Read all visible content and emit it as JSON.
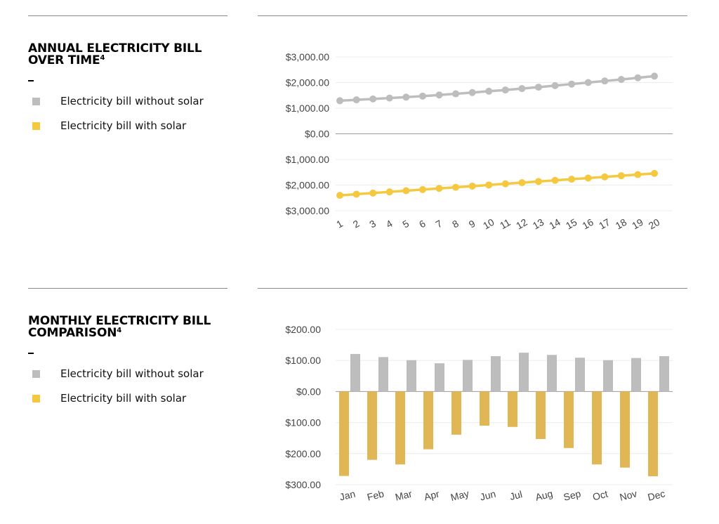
{
  "panels": [
    {
      "title": "ANNUAL ELECTRICITY BILL OVER TIME",
      "title_line1": "ANNUAL ELECTRICITY BILL",
      "title_line2": "OVER TIME",
      "footnote": "4",
      "legend": [
        {
          "label": "Electricity bill without solar",
          "color": "#bdbdbd"
        },
        {
          "label": "Electricity bill with solar",
          "color": "#f4c940"
        }
      ]
    },
    {
      "title": "MONTHLY ELECTRICITY BILL COMPARISON",
      "title_line1": "MONTHLY ELECTRICITY BILL",
      "title_line2": "COMPARISON",
      "footnote": "4",
      "legend": [
        {
          "label": "Electricity bill without solar",
          "color": "#bdbdbd"
        },
        {
          "label": "Electricity bill with solar",
          "color": "#f4c940"
        }
      ]
    }
  ],
  "chart_data": [
    {
      "type": "line",
      "x": [
        1,
        2,
        3,
        4,
        5,
        6,
        7,
        8,
        9,
        10,
        11,
        12,
        13,
        14,
        15,
        16,
        17,
        18,
        19,
        20
      ],
      "y_tick_values": [
        3000,
        2000,
        1000,
        0,
        -1000,
        -2000,
        -3000
      ],
      "y_tick_labels": [
        "$3,000.00",
        "$2,000.00",
        "$1,000.00",
        "$0.00",
        "$1,000.00",
        "$2,000.00",
        "$3,000.00"
      ],
      "ylim": [
        -3000,
        3000
      ],
      "grid": true,
      "series": [
        {
          "color": "#bdbdbd",
          "values": [
            1290,
            1325,
            1360,
            1395,
            1430,
            1470,
            1515,
            1560,
            1610,
            1660,
            1710,
            1765,
            1820,
            1880,
            1940,
            2000,
            2060,
            2120,
            2185,
            2250
          ]
        },
        {
          "color": "#f4c940",
          "values": [
            -2400,
            -2355,
            -2310,
            -2265,
            -2220,
            -2175,
            -2130,
            -2085,
            -2040,
            -1995,
            -1950,
            -1905,
            -1860,
            -1815,
            -1770,
            -1725,
            -1680,
            -1635,
            -1590,
            -1545
          ]
        }
      ]
    },
    {
      "type": "bar",
      "categories": [
        "Jan",
        "Feb",
        "Mar",
        "Apr",
        "May",
        "Jun",
        "Jul",
        "Aug",
        "Sep",
        "Oct",
        "Nov",
        "Dec"
      ],
      "y_tick_values": [
        200,
        100,
        0,
        -100,
        -200,
        -300
      ],
      "y_tick_labels": [
        "$200.00",
        "$100.00",
        "$0.00",
        "$100.00",
        "$200.00",
        "$300.00"
      ],
      "ylim": [
        -300,
        200
      ],
      "grid": true,
      "series": [
        {
          "color": "#bdbdbd",
          "values": [
            121,
            111,
            101,
            91,
            102,
            114,
            125,
            118,
            109,
            101,
            108,
            114
          ]
        },
        {
          "color": "#e1b655",
          "values": [
            -272,
            -220,
            -235,
            -186,
            -139,
            -110,
            -114,
            -153,
            -182,
            -235,
            -245,
            -273
          ]
        }
      ]
    }
  ]
}
